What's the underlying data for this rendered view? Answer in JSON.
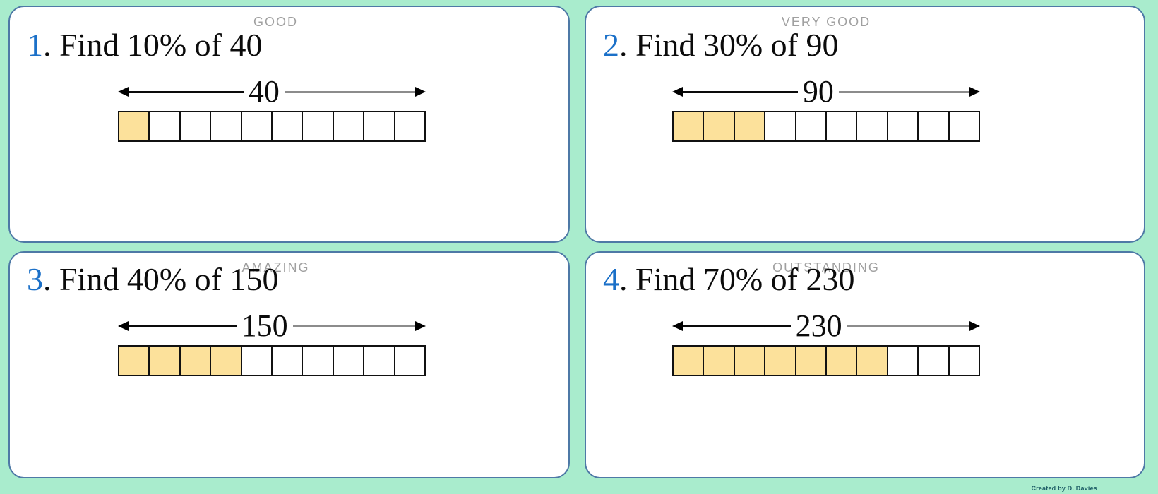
{
  "page": {
    "credit": "Created by D. Davies"
  },
  "colors": {
    "background": "#A9ECCD",
    "card_border": "#4E79A6",
    "accent_blue": "#1B70C8",
    "shaded_yellow": "#FCE19B",
    "header_gray": "#A0A0A0",
    "arrow_gray": "#8C8C8C",
    "credit_teal": "#1E5E66"
  },
  "cards": [
    {
      "award_label": "GOOD",
      "question_number": "1",
      "question_rest": ". Find 10% of 40",
      "percent": "10%",
      "total": "40",
      "bar": {
        "segments": 10,
        "shaded": 1
      }
    },
    {
      "award_label": "VERY GOOD",
      "question_number": "2",
      "question_rest": ". Find 30% of 90",
      "percent": "30%",
      "total": "90",
      "bar": {
        "segments": 10,
        "shaded": 3
      }
    },
    {
      "award_label": "AMAZING",
      "question_number": "3",
      "question_rest": ". Find 40% of 150",
      "percent": "40%",
      "total": "150",
      "bar": {
        "segments": 10,
        "shaded": 4
      }
    },
    {
      "award_label": "OUTSTANDING",
      "question_number": "4",
      "question_rest": ". Find 70% of 230",
      "percent": "70%",
      "total": "230",
      "bar": {
        "segments": 10,
        "shaded": 7
      }
    }
  ]
}
